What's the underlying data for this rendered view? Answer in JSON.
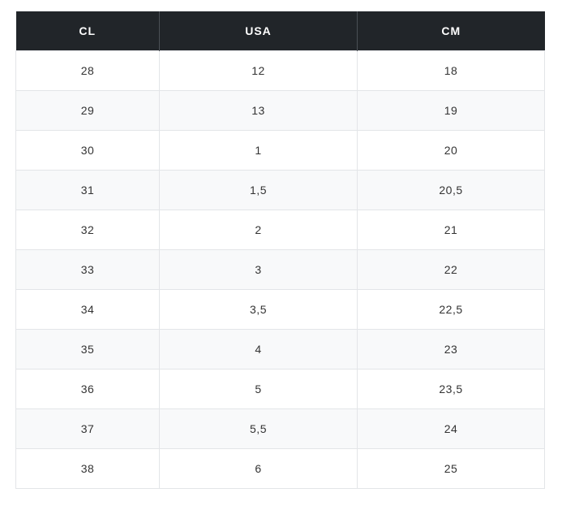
{
  "size_table": {
    "headers": [
      "CL",
      "USA",
      "CM"
    ],
    "rows": [
      [
        "28",
        "12",
        "18"
      ],
      [
        "29",
        "13",
        "19"
      ],
      [
        "30",
        "1",
        "20"
      ],
      [
        "31",
        "1,5",
        "20,5"
      ],
      [
        "32",
        "2",
        "21"
      ],
      [
        "33",
        "3",
        "22"
      ],
      [
        "34",
        "3,5",
        "22,5"
      ],
      [
        "35",
        "4",
        "23"
      ],
      [
        "36",
        "5",
        "23,5"
      ],
      [
        "37",
        "5,5",
        "24"
      ],
      [
        "38",
        "6",
        "25"
      ]
    ],
    "colors": {
      "header_background": "#212529",
      "header_text": "#ffffff",
      "stripe_background": "#f8f9fa",
      "cell_text": "#333333",
      "border": "#e3e5e8"
    }
  }
}
